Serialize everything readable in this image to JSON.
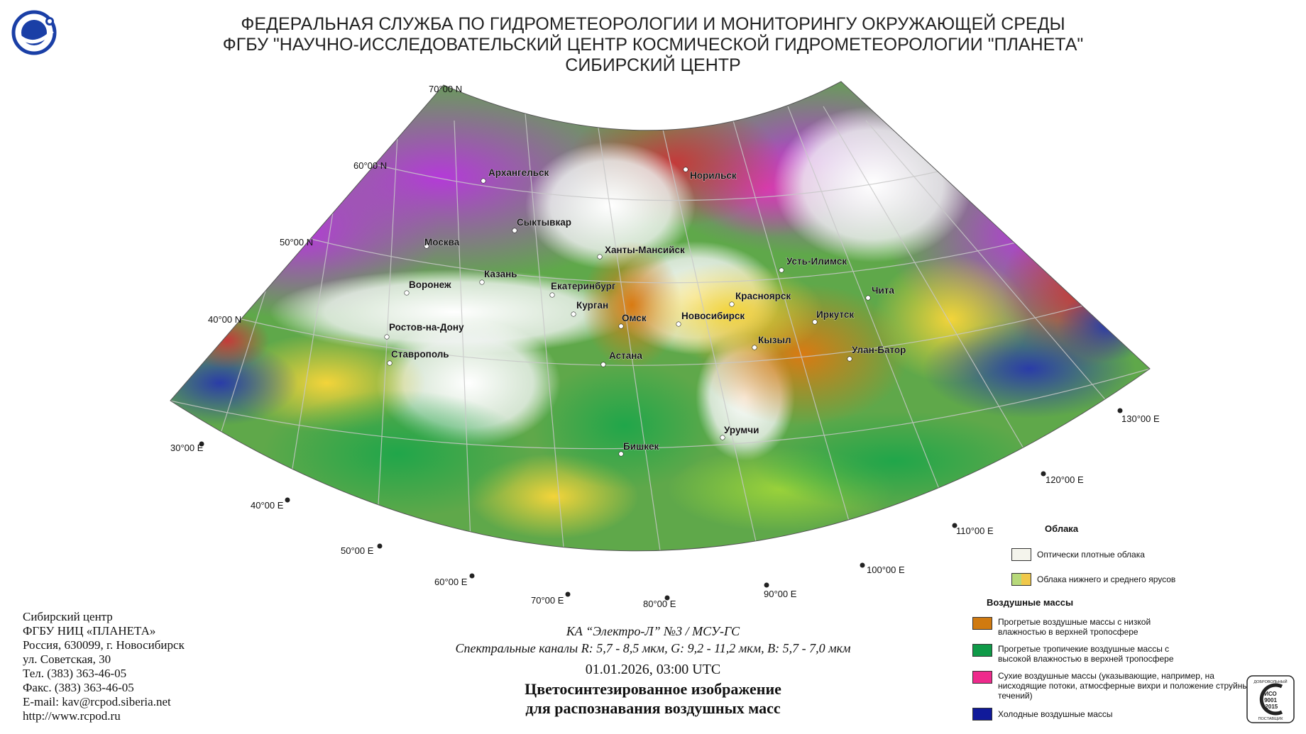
{
  "header": {
    "line1": "ФЕДЕРАЛЬНАЯ СЛУЖБА ПО ГИДРОМЕТЕОРОЛОГИИ И МОНИТОРИНГУ ОКРУЖАЮЩЕЙ СРЕДЫ",
    "line2": "ФГБУ \"НАУЧНО-ИССЛЕДОВАТЕЛЬСКИЙ ЦЕНТР КОСМИЧЕСКОЙ ГИДРОМЕТЕОРОЛОГИИ \"ПЛАНЕТА\"",
    "line3": "СИБИРСКИЙ ЦЕНТР"
  },
  "logo": {
    "icon": "planeta-logo-icon",
    "color": "#1a3fa6"
  },
  "latitude_labels": [
    "70°00 N",
    "60°00 N",
    "50°00 N",
    "40°00 N"
  ],
  "longitude_labels": [
    "30°00 E",
    "40°00 E",
    "50°00 E",
    "60°00 E",
    "70°00 E",
    "80°00 E",
    "90°00 E",
    "100°00 E",
    "110°00 E",
    "120°00 E",
    "130°00 E"
  ],
  "cities": [
    "Архангельск",
    "Норильск",
    "Сыктывкар",
    "Москва",
    "Ханты-Мансийск",
    "Усть-Илимск",
    "Казань",
    "Воронеж",
    "Екатеринбург",
    "Красноярск",
    "Чита",
    "Курган",
    "Омск",
    "Новосибирск",
    "Иркутск",
    "Ростов-на-Дону",
    "Кызыл",
    "Улан-Батор",
    "Ставрополь",
    "Астана",
    "Урумчи",
    "Бишкек"
  ],
  "legend": {
    "clouds_title": "Облака",
    "clouds": [
      {
        "label": "Оптически плотные облака",
        "color": "#f4f4ec"
      },
      {
        "label": "Облака нижнего и среднего ярусов",
        "colors": [
          "#b7d97a",
          "#f0c84a"
        ]
      }
    ],
    "airmass_title": "Воздушные массы",
    "airmasses": [
      {
        "label": "Прогретые воздушные массы с низкой влажностью в верхней тропосфере",
        "color": "#d07a10"
      },
      {
        "label": "Прогретые тропичекие воздушные массы с высокой влажностью в верхней тропосфере",
        "color": "#0f9a48"
      },
      {
        "label": "Сухие воздушные массы (указывающие, например, на нисходящие потоки, атмосферные вихри и положение струйных течений)",
        "color": "#ee2a8c"
      },
      {
        "label": "Холодные воздушные массы",
        "color": "#101a9a"
      }
    ]
  },
  "left_info": [
    "Сибирский центр",
    "ФГБУ НИЦ «ПЛАНЕТА»",
    "Россия, 630099, г. Новосибирск",
    "ул. Советская, 30",
    "Тел. (383) 363-46-05",
    "Факс. (383) 363-46-05",
    "E-mail: kav@rcpod.siberia.net",
    "http://www.rcpod.ru"
  ],
  "center_info": {
    "satellite": "КА “Электро-Л” №3 / МСУ-ГС",
    "channels": "Спектральные каналы R: 5,7 - 8,5 мкм, G: 9,2 - 11,2 мкм, B: 5,7 - 7,0 мкм",
    "datetime": "01.01.2026, 03:00 UTC",
    "title1": "Цветосинтезированное изображение",
    "title2": "для распознавания воздушных масс"
  },
  "iso_badge": {
    "top": "ДОБРОВОЛЬНЫЙ",
    "mid1": "ИСО",
    "mid2": "9001",
    "mid3": "-2015",
    "bottom": "ПОСТАВЩИК"
  }
}
